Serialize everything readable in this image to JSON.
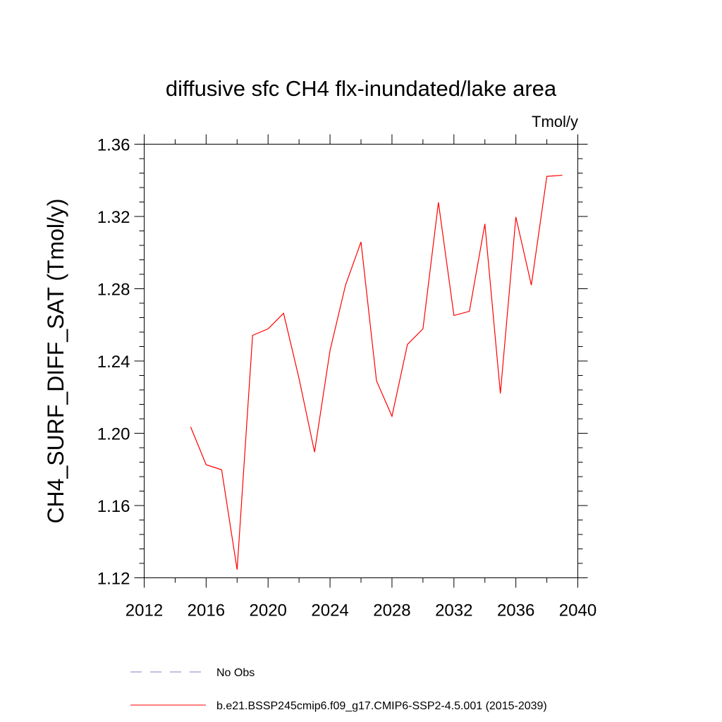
{
  "chart_data": {
    "type": "line",
    "title": "diffusive sfc CH4 flx-inundated/lake area",
    "units": "Tmol/y",
    "xlabel": "",
    "ylabel": "CH4_SURF_DIFF_SAT  (Tmol/y)",
    "xlim": [
      2012,
      2040
    ],
    "ylim": [
      1.12,
      1.36
    ],
    "x_ticks": [
      2012,
      2016,
      2020,
      2024,
      2028,
      2032,
      2036,
      2040
    ],
    "x_tick_labels": [
      "2012",
      "2016",
      "2020",
      "2024",
      "2028",
      "2032",
      "2036",
      "2040"
    ],
    "y_ticks": [
      1.12,
      1.16,
      1.2,
      1.24,
      1.28,
      1.32,
      1.36
    ],
    "y_tick_labels": [
      "1.12",
      "1.16",
      "1.20",
      "1.24",
      "1.28",
      "1.32",
      "1.36"
    ],
    "x": [
      2015,
      2016,
      2017,
      2018,
      2019,
      2020,
      2021,
      2022,
      2023,
      2024,
      2025,
      2026,
      2027,
      2028,
      2029,
      2030,
      2031,
      2032,
      2033,
      2034,
      2035,
      2036,
      2037,
      2038,
      2039
    ],
    "series": [
      {
        "name": "b.e21.BSSP245cmip6.f09_g17.CMIP6-SSP2-4.5.001 (2015-2039)",
        "color": "#ff0000",
        "values": [
          1.2035,
          1.1826,
          1.1798,
          1.1245,
          1.2542,
          1.2578,
          1.2664,
          1.2303,
          1.1896,
          1.2458,
          1.282,
          1.3059,
          1.2291,
          1.2094,
          1.2492,
          1.2578,
          1.3278,
          1.2652,
          1.2675,
          1.3159,
          1.222,
          1.3197,
          1.282,
          1.3422,
          1.3428
        ]
      }
    ],
    "legend": [
      {
        "label": "No Obs",
        "style": "dashed",
        "color": "#8080c0"
      },
      {
        "label": "b.e21.BSSP245cmip6.f09_g17.CMIP6-SSP2-4.5.001 (2015-2039)",
        "style": "solid",
        "color": "#ff0000"
      }
    ]
  }
}
